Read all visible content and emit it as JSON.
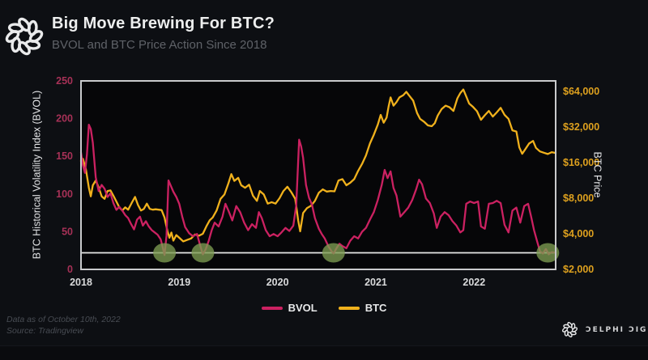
{
  "header": {
    "title": "Big Move Brewing For BTC?",
    "subtitle": "BVOL and BTC Price Action Since 2018"
  },
  "footer": {
    "note_line1": "Data as of October 10th, 2022",
    "note_line2": "Source: Tradingview",
    "brand": "ƆELPHI ƆIGITAL"
  },
  "chart_data": {
    "type": "line",
    "title": "Big Move Brewing For BTC?",
    "subtitle": "BVOL and BTC Price Action Since 2018",
    "x_range": [
      2018.0,
      2022.83
    ],
    "x_ticks": [
      2018,
      2019,
      2020,
      2021,
      2022
    ],
    "x_tick_color": "#d9dadb",
    "grid": false,
    "plot_bg": "#060608",
    "border_color": "#c9cacc",
    "left_axis": {
      "label": "BTC Historical Volatility Index (BVOL)",
      "ticks": [
        0,
        50,
        100,
        150,
        200,
        250
      ],
      "range": [
        0,
        250
      ],
      "scale": "linear",
      "color": "#a73157"
    },
    "right_axis": {
      "label": "BTC Price",
      "ticks": [
        "$2,000",
        "$4,000",
        "$8,000",
        "$16,000",
        "$32,000",
        "$64,000"
      ],
      "tick_values": [
        2000,
        4000,
        8000,
        16000,
        32000,
        64000
      ],
      "scale": "log2",
      "color": "#dda01e"
    },
    "reference_line": {
      "axis": "left",
      "value": 22,
      "color": "#e8e8e6"
    },
    "highlight_color": "#7e9c52",
    "highlights": [
      {
        "x": 2018.85,
        "y": 22
      },
      {
        "x": 2019.24,
        "y": 22
      },
      {
        "x": 2020.57,
        "y": 22
      },
      {
        "x": 2022.75,
        "y": 22
      }
    ],
    "legend": [
      {
        "label": "BVOL",
        "color": "#cb2161"
      },
      {
        "label": "BTC",
        "color": "#f0b11c"
      }
    ],
    "series": [
      {
        "name": "BTC",
        "axis": "right",
        "color": "#f0b11c",
        "points": [
          [
            2018.0,
            16500
          ],
          [
            2018.02,
            17200
          ],
          [
            2018.05,
            14000
          ],
          [
            2018.08,
            9800
          ],
          [
            2018.1,
            8300
          ],
          [
            2018.12,
            10300
          ],
          [
            2018.15,
            11300
          ],
          [
            2018.18,
            9900
          ],
          [
            2018.21,
            8300
          ],
          [
            2018.24,
            7900
          ],
          [
            2018.27,
            9200
          ],
          [
            2018.3,
            9300
          ],
          [
            2018.33,
            8400
          ],
          [
            2018.36,
            7500
          ],
          [
            2018.39,
            6700
          ],
          [
            2018.42,
            6300
          ],
          [
            2018.45,
            6700
          ],
          [
            2018.48,
            6400
          ],
          [
            2018.52,
            7400
          ],
          [
            2018.55,
            8200
          ],
          [
            2018.58,
            7000
          ],
          [
            2018.61,
            6300
          ],
          [
            2018.64,
            6500
          ],
          [
            2018.67,
            7200
          ],
          [
            2018.7,
            6500
          ],
          [
            2018.73,
            6400
          ],
          [
            2018.76,
            6450
          ],
          [
            2018.79,
            6400
          ],
          [
            2018.82,
            6350
          ],
          [
            2018.85,
            5500
          ],
          [
            2018.88,
            4200
          ],
          [
            2018.9,
            3700
          ],
          [
            2018.92,
            4100
          ],
          [
            2018.94,
            3500
          ],
          [
            2018.97,
            3900
          ],
          [
            2019.0,
            3700
          ],
          [
            2019.04,
            3450
          ],
          [
            2019.08,
            3550
          ],
          [
            2019.12,
            3650
          ],
          [
            2019.16,
            3950
          ],
          [
            2019.2,
            3850
          ],
          [
            2019.24,
            4000
          ],
          [
            2019.28,
            4700
          ],
          [
            2019.31,
            5200
          ],
          [
            2019.34,
            5500
          ],
          [
            2019.38,
            6300
          ],
          [
            2019.42,
            7900
          ],
          [
            2019.46,
            8600
          ],
          [
            2019.5,
            10700
          ],
          [
            2019.53,
            12800
          ],
          [
            2019.56,
            11200
          ],
          [
            2019.6,
            11900
          ],
          [
            2019.63,
            10300
          ],
          [
            2019.67,
            9800
          ],
          [
            2019.71,
            10400
          ],
          [
            2019.75,
            8400
          ],
          [
            2019.79,
            7600
          ],
          [
            2019.82,
            9200
          ],
          [
            2019.86,
            8600
          ],
          [
            2019.9,
            7200
          ],
          [
            2019.94,
            7400
          ],
          [
            2019.98,
            7200
          ],
          [
            2020.02,
            8000
          ],
          [
            2020.06,
            9200
          ],
          [
            2020.1,
            10000
          ],
          [
            2020.14,
            9000
          ],
          [
            2020.18,
            7900
          ],
          [
            2020.21,
            5200
          ],
          [
            2020.23,
            4200
          ],
          [
            2020.26,
            6000
          ],
          [
            2020.3,
            6600
          ],
          [
            2020.34,
            6900
          ],
          [
            2020.38,
            7600
          ],
          [
            2020.42,
            8900
          ],
          [
            2020.46,
            9500
          ],
          [
            2020.5,
            9100
          ],
          [
            2020.54,
            9200
          ],
          [
            2020.58,
            9150
          ],
          [
            2020.62,
            11300
          ],
          [
            2020.66,
            11600
          ],
          [
            2020.7,
            10300
          ],
          [
            2020.74,
            10800
          ],
          [
            2020.78,
            11600
          ],
          [
            2020.82,
            13600
          ],
          [
            2020.86,
            15600
          ],
          [
            2020.9,
            18400
          ],
          [
            2020.94,
            23200
          ],
          [
            2020.98,
            27500
          ],
          [
            2021.02,
            33500
          ],
          [
            2021.05,
            40500
          ],
          [
            2021.08,
            34800
          ],
          [
            2021.11,
            38500
          ],
          [
            2021.13,
            47500
          ],
          [
            2021.15,
            57000
          ],
          [
            2021.18,
            48500
          ],
          [
            2021.21,
            52000
          ],
          [
            2021.24,
            57000
          ],
          [
            2021.28,
            59500
          ],
          [
            2021.31,
            63500
          ],
          [
            2021.34,
            59000
          ],
          [
            2021.38,
            53500
          ],
          [
            2021.42,
            42000
          ],
          [
            2021.45,
            37500
          ],
          [
            2021.49,
            35500
          ],
          [
            2021.53,
            33000
          ],
          [
            2021.57,
            32500
          ],
          [
            2021.6,
            34500
          ],
          [
            2021.63,
            40000
          ],
          [
            2021.67,
            45500
          ],
          [
            2021.71,
            48500
          ],
          [
            2021.75,
            47000
          ],
          [
            2021.79,
            43800
          ],
          [
            2021.83,
            56000
          ],
          [
            2021.86,
            62000
          ],
          [
            2021.89,
            66500
          ],
          [
            2021.92,
            58000
          ],
          [
            2021.95,
            50500
          ],
          [
            2021.99,
            47200
          ],
          [
            2022.03,
            43500
          ],
          [
            2022.07,
            36800
          ],
          [
            2022.11,
            40300
          ],
          [
            2022.15,
            43800
          ],
          [
            2022.19,
            39200
          ],
          [
            2022.23,
            42500
          ],
          [
            2022.27,
            46500
          ],
          [
            2022.31,
            40500
          ],
          [
            2022.35,
            37500
          ],
          [
            2022.39,
            30000
          ],
          [
            2022.43,
            29300
          ],
          [
            2022.46,
            21500
          ],
          [
            2022.49,
            19000
          ],
          [
            2022.53,
            21300
          ],
          [
            2022.56,
            23200
          ],
          [
            2022.6,
            24400
          ],
          [
            2022.63,
            21300
          ],
          [
            2022.67,
            19900
          ],
          [
            2022.71,
            19400
          ],
          [
            2022.75,
            18900
          ],
          [
            2022.79,
            19600
          ],
          [
            2022.83,
            19300
          ]
        ]
      },
      {
        "name": "BVOL",
        "axis": "left",
        "color": "#cb2161",
        "points": [
          [
            2018.0,
            155
          ],
          [
            2018.02,
            138
          ],
          [
            2018.04,
            128
          ],
          [
            2018.06,
            152
          ],
          [
            2018.08,
            192
          ],
          [
            2018.1,
            186
          ],
          [
            2018.12,
            168
          ],
          [
            2018.15,
            122
          ],
          [
            2018.18,
            104
          ],
          [
            2018.21,
            112
          ],
          [
            2018.24,
            107
          ],
          [
            2018.27,
            96
          ],
          [
            2018.3,
            101
          ],
          [
            2018.33,
            88
          ],
          [
            2018.36,
            79
          ],
          [
            2018.39,
            83
          ],
          [
            2018.42,
            78
          ],
          [
            2018.45,
            72
          ],
          [
            2018.48,
            68
          ],
          [
            2018.51,
            60
          ],
          [
            2018.54,
            53
          ],
          [
            2018.57,
            66
          ],
          [
            2018.6,
            70
          ],
          [
            2018.63,
            58
          ],
          [
            2018.66,
            64
          ],
          [
            2018.69,
            57
          ],
          [
            2018.72,
            52
          ],
          [
            2018.75,
            49
          ],
          [
            2018.78,
            46
          ],
          [
            2018.81,
            40
          ],
          [
            2018.83,
            30
          ],
          [
            2018.85,
            19
          ],
          [
            2018.87,
            45
          ],
          [
            2018.89,
            118
          ],
          [
            2018.91,
            112
          ],
          [
            2018.94,
            103
          ],
          [
            2018.97,
            96
          ],
          [
            2019.0,
            87
          ],
          [
            2019.03,
            70
          ],
          [
            2019.06,
            56
          ],
          [
            2019.1,
            48
          ],
          [
            2019.14,
            44
          ],
          [
            2019.18,
            47
          ],
          [
            2019.21,
            33
          ],
          [
            2019.24,
            20
          ],
          [
            2019.27,
            27
          ],
          [
            2019.3,
            38
          ],
          [
            2019.33,
            52
          ],
          [
            2019.36,
            62
          ],
          [
            2019.4,
            57
          ],
          [
            2019.44,
            70
          ],
          [
            2019.47,
            87
          ],
          [
            2019.5,
            78
          ],
          [
            2019.54,
            65
          ],
          [
            2019.58,
            84
          ],
          [
            2019.62,
            76
          ],
          [
            2019.66,
            62
          ],
          [
            2019.7,
            52
          ],
          [
            2019.74,
            60
          ],
          [
            2019.78,
            55
          ],
          [
            2019.81,
            76
          ],
          [
            2019.84,
            68
          ],
          [
            2019.88,
            52
          ],
          [
            2019.92,
            44
          ],
          [
            2019.96,
            47
          ],
          [
            2020.0,
            44
          ],
          [
            2020.04,
            49
          ],
          [
            2020.08,
            55
          ],
          [
            2020.12,
            51
          ],
          [
            2020.16,
            58
          ],
          [
            2020.19,
            85
          ],
          [
            2020.22,
            172
          ],
          [
            2020.24,
            163
          ],
          [
            2020.26,
            148
          ],
          [
            2020.29,
            112
          ],
          [
            2020.32,
            95
          ],
          [
            2020.35,
            86
          ],
          [
            2020.38,
            68
          ],
          [
            2020.42,
            54
          ],
          [
            2020.45,
            47
          ],
          [
            2020.48,
            41
          ],
          [
            2020.52,
            30
          ],
          [
            2020.55,
            24
          ],
          [
            2020.57,
            21
          ],
          [
            2020.6,
            28
          ],
          [
            2020.63,
            34
          ],
          [
            2020.66,
            31
          ],
          [
            2020.7,
            28
          ],
          [
            2020.74,
            38
          ],
          [
            2020.78,
            44
          ],
          [
            2020.82,
            41
          ],
          [
            2020.86,
            50
          ],
          [
            2020.9,
            55
          ],
          [
            2020.94,
            66
          ],
          [
            2020.98,
            76
          ],
          [
            2021.02,
            92
          ],
          [
            2021.06,
            112
          ],
          [
            2021.09,
            132
          ],
          [
            2021.12,
            121
          ],
          [
            2021.15,
            130
          ],
          [
            2021.18,
            108
          ],
          [
            2021.21,
            98
          ],
          [
            2021.25,
            70
          ],
          [
            2021.29,
            76
          ],
          [
            2021.33,
            82
          ],
          [
            2021.37,
            92
          ],
          [
            2021.41,
            106
          ],
          [
            2021.44,
            119
          ],
          [
            2021.47,
            113
          ],
          [
            2021.51,
            94
          ],
          [
            2021.55,
            88
          ],
          [
            2021.59,
            74
          ],
          [
            2021.62,
            55
          ],
          [
            2021.66,
            70
          ],
          [
            2021.7,
            76
          ],
          [
            2021.74,
            72
          ],
          [
            2021.78,
            64
          ],
          [
            2021.82,
            58
          ],
          [
            2021.86,
            49
          ],
          [
            2021.89,
            52
          ],
          [
            2021.92,
            87
          ],
          [
            2021.96,
            90
          ],
          [
            2022.0,
            88
          ],
          [
            2022.04,
            90
          ],
          [
            2022.07,
            57
          ],
          [
            2022.11,
            54
          ],
          [
            2022.15,
            87
          ],
          [
            2022.19,
            88
          ],
          [
            2022.23,
            91
          ],
          [
            2022.27,
            88
          ],
          [
            2022.31,
            59
          ],
          [
            2022.35,
            49
          ],
          [
            2022.39,
            78
          ],
          [
            2022.43,
            82
          ],
          [
            2022.47,
            62
          ],
          [
            2022.51,
            84
          ],
          [
            2022.55,
            87
          ],
          [
            2022.58,
            70
          ],
          [
            2022.61,
            52
          ],
          [
            2022.64,
            38
          ],
          [
            2022.67,
            24
          ],
          [
            2022.7,
            21
          ],
          [
            2022.73,
            27
          ],
          [
            2022.76,
            20
          ],
          [
            2022.79,
            23
          ],
          [
            2022.83,
            22
          ]
        ]
      }
    ]
  }
}
